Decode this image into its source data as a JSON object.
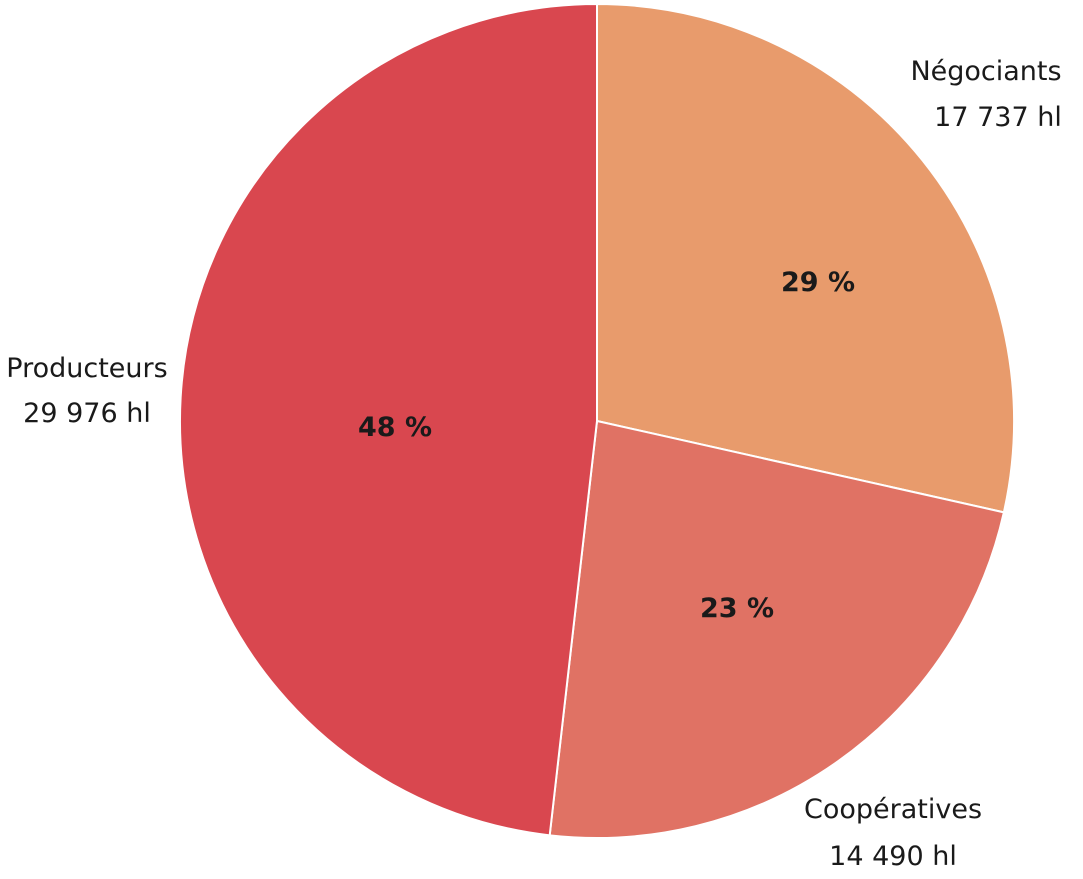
{
  "chart_data": {
    "type": "pie",
    "title": "",
    "slices": [
      {
        "name": "Négociants",
        "value": 17737,
        "value_label": "17 737 hl",
        "percent_label": "29 %",
        "color": "#e89b6c"
      },
      {
        "name": "Coopératives",
        "value": 14490,
        "value_label": "14 490 hl",
        "percent_label": "23 %",
        "color": "#e07264"
      },
      {
        "name": "Producteurs",
        "value": 29976,
        "value_label": "29 976 hl",
        "percent_label": "48 %",
        "color": "#d9474f"
      }
    ],
    "start_angle_deg": 0,
    "direction": "clockwise",
    "separator_color": "#ffffff"
  }
}
